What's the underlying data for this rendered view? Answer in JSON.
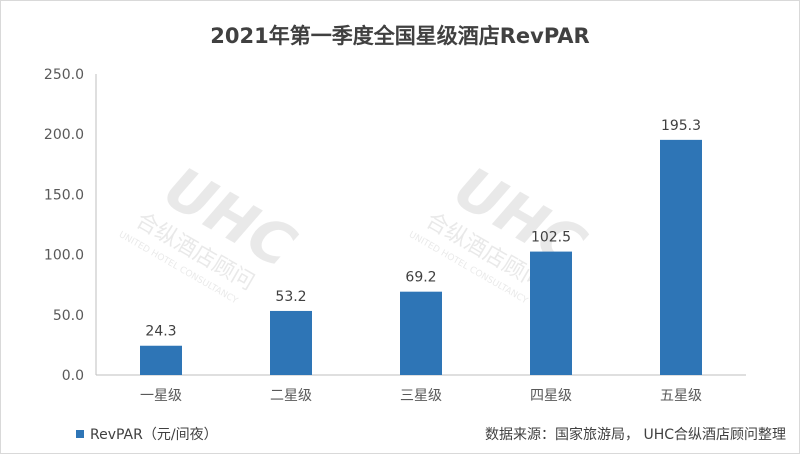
{
  "chart_data": {
    "type": "bar",
    "title": "2021年第一季度全国星级酒店RevPAR",
    "categories": [
      "一星级",
      "二星级",
      "三星级",
      "四星级",
      "五星级"
    ],
    "series": [
      {
        "name": "RevPAR（元/间夜）",
        "values": [
          24.3,
          53.2,
          69.2,
          102.5,
          195.3
        ]
      }
    ],
    "data_labels": [
      "24.3",
      "53.2",
      "69.2",
      "102.5",
      "195.3"
    ],
    "ylim": [
      0,
      250
    ],
    "yticks": [
      "0.0",
      "50.0",
      "100.0",
      "150.0",
      "200.0",
      "250.0"
    ],
    "ytick_values": [
      0,
      50,
      100,
      150,
      200,
      250
    ],
    "grid": false,
    "legend": "bottom-left",
    "bar_color": "#2e75b6"
  },
  "source": "数据来源：国家旅游局， UHC合纵酒店顾问整理",
  "watermark": {
    "logo": "UHC",
    "cn": "合纵酒店顾问",
    "en": "UNITED HOTEL CONSULTANCY"
  }
}
